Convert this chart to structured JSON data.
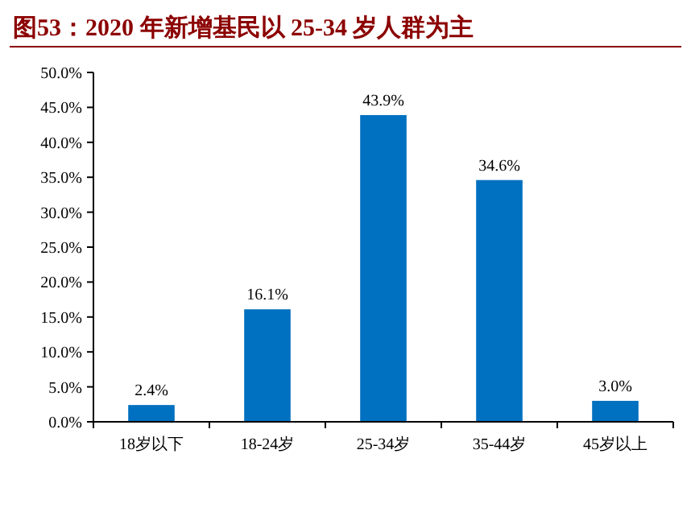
{
  "chart_data": {
    "type": "bar",
    "title": "图53：2020 年新增基民以 25-34 岁人群为主",
    "categories": [
      "18岁以下",
      "18-24岁",
      "25-34岁",
      "35-44岁",
      "45岁以上"
    ],
    "values": [
      2.4,
      16.1,
      43.9,
      34.6,
      3.0
    ],
    "color": "#0070c0",
    "value_labels": [
      "2.4%",
      "16.1%",
      "43.9%",
      "34.6%",
      "3.0%"
    ],
    "ylim": [
      0,
      50
    ],
    "yticks": [
      {
        "value": 0,
        "label": "0.0%"
      },
      {
        "value": 5,
        "label": "5.0%"
      },
      {
        "value": 10,
        "label": "10.0%"
      },
      {
        "value": 15,
        "label": "15.0%"
      },
      {
        "value": 20,
        "label": "20.0%"
      },
      {
        "value": 25,
        "label": "25.0%"
      },
      {
        "value": 30,
        "label": "30.0%"
      },
      {
        "value": 35,
        "label": "35.0%"
      },
      {
        "value": 40,
        "label": "40.0%"
      },
      {
        "value": 45,
        "label": "45.0%"
      },
      {
        "value": 50,
        "label": "50.0%"
      }
    ],
    "grid": false
  }
}
